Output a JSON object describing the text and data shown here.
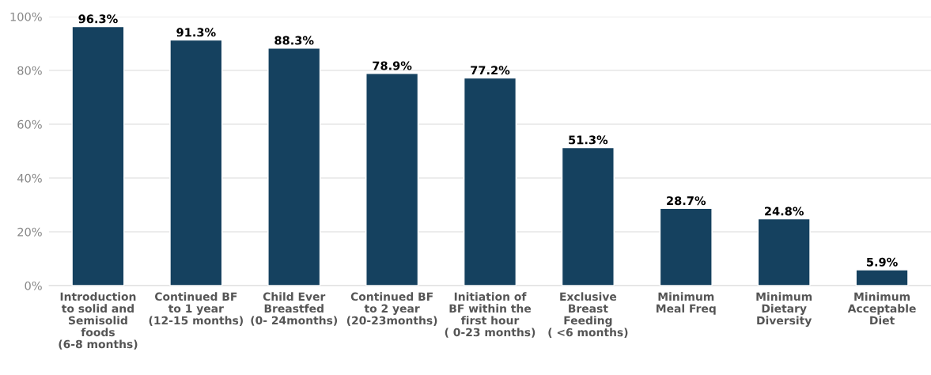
{
  "chart_data": {
    "type": "bar",
    "categories": [
      "Introduction\nto solid and\nSemisolid\nfoods\n(6-8 months)",
      "Continued BF\nto 1 year\n(12-15 months)",
      "Child Ever\nBreastfed\n(0- 24months)",
      "Continued BF\nto 2 year\n(20-23months)",
      "Initiation of\nBF within the\nfirst hour\n( 0-23 months)",
      "Exclusive\nBreast\nFeeding\n( <6 months)",
      "Minimum\nMeal Freq",
      "Minimum\nDietary\nDiversity",
      "Minimum\nAcceptable\nDiet"
    ],
    "values": [
      96.3,
      91.3,
      88.3,
      78.9,
      77.2,
      51.3,
      28.7,
      24.8,
      5.9
    ],
    "value_labels": [
      "96.3%",
      "91.3%",
      "88.3%",
      "78.9%",
      "77.2%",
      "51.3%",
      "28.7%",
      "24.8%",
      "5.9%"
    ],
    "color": "#15415f",
    "ylim": [
      0,
      100
    ],
    "yticks": [
      {
        "value": 0,
        "label": "0%"
      },
      {
        "value": 20,
        "label": "20%"
      },
      {
        "value": 40,
        "label": "40%"
      },
      {
        "value": 60,
        "label": "60%"
      },
      {
        "value": 80,
        "label": "80%"
      },
      {
        "value": 100,
        "label": "100%"
      }
    ],
    "grid": "y",
    "legend": false
  }
}
